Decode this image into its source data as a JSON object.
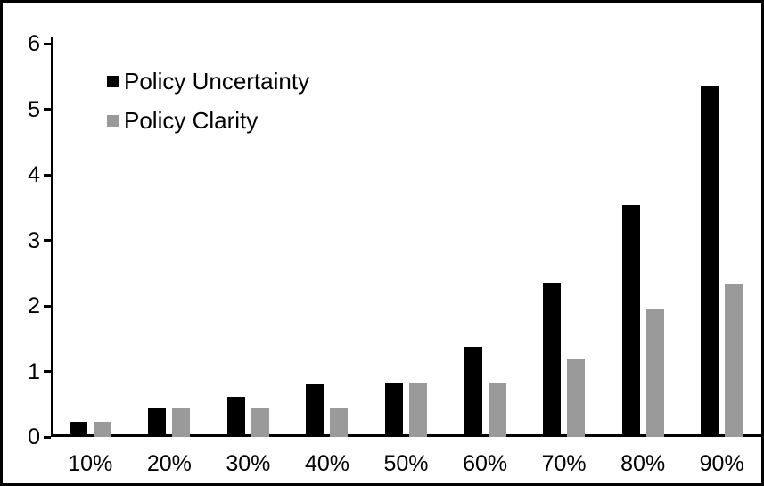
{
  "chart_data": {
    "type": "bar",
    "title": "",
    "xlabel": "",
    "ylabel": "",
    "categories": [
      "10%",
      "20%",
      "30%",
      "40%",
      "50%",
      "60%",
      "70%",
      "80%",
      "90%"
    ],
    "series": [
      {
        "name": "Policy Uncertainty",
        "color": "#000000",
        "values": [
          0.19,
          0.39,
          0.57,
          0.76,
          0.78,
          1.33,
          2.32,
          3.5,
          5.3
        ]
      },
      {
        "name": "Policy Clarity",
        "color": "#9a9a9a",
        "values": [
          0.19,
          0.39,
          0.39,
          0.39,
          0.77,
          0.77,
          1.15,
          1.9,
          2.3
        ]
      }
    ],
    "ylim": [
      0,
      6
    ],
    "yticks": [
      0,
      1,
      2,
      3,
      4,
      5,
      6
    ],
    "grid": false,
    "legend_position": "top-left",
    "frame_color": "#000000",
    "background_color": "#ffffff",
    "axis_color": "#000000"
  }
}
